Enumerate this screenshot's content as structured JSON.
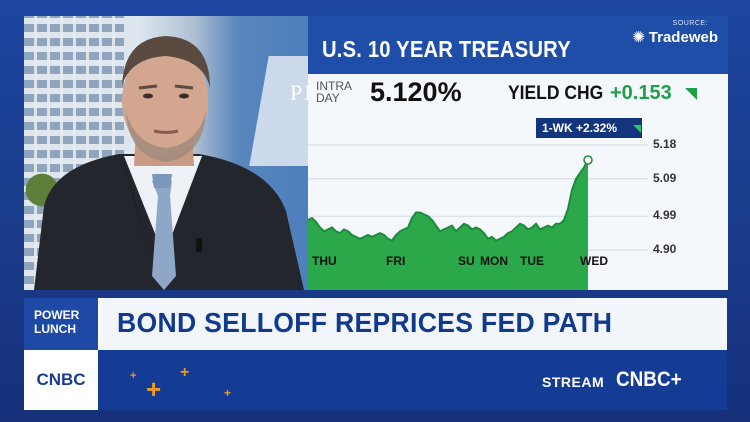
{
  "chart_panel": {
    "title": "U.S. 10 YEAR TREASURY",
    "source_label": "SOURCE:",
    "source_name": "Tradeweb",
    "intra_label": "INTRA DAY",
    "quote_value": "5.120%",
    "change_label": "YIELD CHG",
    "change_value": "+0.153",
    "week_change": "1-WK +2.32%"
  },
  "chart_data": {
    "type": "area",
    "title": "U.S. 10 YEAR TREASURY",
    "xlabel": "",
    "ylabel": "",
    "x_tick_labels": [
      "THU",
      "FRI",
      "SU",
      "MON",
      "TUE",
      "WED"
    ],
    "y_tick_labels": [
      "5.18",
      "5.09",
      "4.99",
      "4.90"
    ],
    "ylim": [
      4.86,
      5.22
    ],
    "grid": true,
    "x": [
      0,
      4,
      8,
      12,
      16,
      20,
      24,
      28,
      32,
      36,
      40,
      44,
      48,
      52,
      56,
      60,
      64,
      68,
      72,
      76,
      80,
      84,
      88,
      92,
      96,
      100,
      104,
      108,
      112,
      116,
      120,
      124,
      128,
      132,
      136,
      140,
      144,
      148,
      152,
      156,
      160,
      164,
      168,
      172,
      176,
      180,
      184,
      188,
      192,
      196,
      200,
      204,
      208,
      212,
      216,
      220,
      224,
      228,
      232,
      236,
      240,
      244,
      248,
      252,
      256,
      260,
      264,
      268,
      272,
      276,
      280,
      284,
      288,
      292,
      296,
      300,
      304,
      308,
      312,
      316,
      320,
      324,
      328,
      332,
      336,
      340
    ],
    "series": [
      {
        "values": [
          4.98,
          4.985,
          4.975,
          4.96,
          4.95,
          4.955,
          4.96,
          4.95,
          4.945,
          4.955,
          4.95,
          4.94,
          4.935,
          4.93,
          4.935,
          4.94,
          4.935,
          4.94,
          4.945,
          4.94,
          4.93,
          4.925,
          4.94,
          4.95,
          4.955,
          4.96,
          4.985,
          5.0,
          5.0,
          4.995,
          4.99,
          4.98,
          4.965,
          4.95,
          4.955,
          4.96,
          4.965,
          4.95,
          4.96,
          4.97,
          4.965,
          4.955,
          4.96,
          4.955,
          4.945,
          4.93,
          4.935,
          4.925,
          4.93,
          4.935,
          4.945,
          4.95,
          4.96,
          4.97,
          4.965,
          4.955,
          4.96,
          4.97,
          4.955,
          4.96,
          4.965,
          4.96,
          4.97,
          4.97,
          4.98,
          5.01,
          5.06,
          5.09,
          5.105,
          5.12,
          5.14,
          5.145,
          5.13,
          5.128,
          5.12,
          5.12,
          5.12,
          5.12,
          5.12,
          5.12,
          5.12,
          5.12,
          5.12,
          5.12,
          5.12,
          5.12
        ]
      }
    ],
    "end_value": 5.12
  },
  "lower_third": {
    "show_label": "POWER LUNCH",
    "headline": "BOND SELLOFF REPRICES FED PATH",
    "network": "CNBC",
    "stream_label": "STREAM",
    "stream_brand": "CNBC+"
  },
  "colors": {
    "accent_blue": "#1f4ea8",
    "up_green": "#1fa048",
    "headline_blue": "#123a8c",
    "plus_orange": "#f39a1e"
  }
}
